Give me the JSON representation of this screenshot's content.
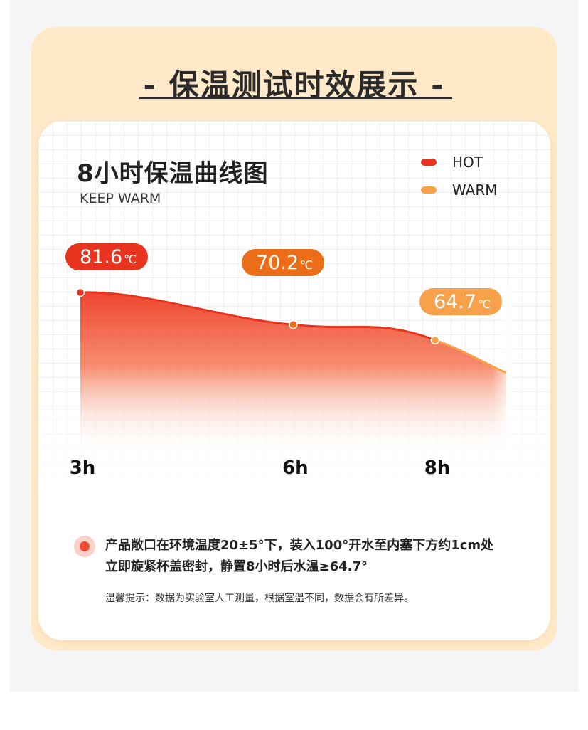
{
  "heading": "- 保温测试时效展示 -",
  "footnote": {
    "line1": "产品敞口在环境温度20±5°下，装入100°开水至内塞下方约1cm处",
    "line2": "立即旋紧杯盖密封，静置8小时后水温≥64.7°"
  },
  "tip": "温馨提示：数据为实验室人工测量，根据室温不同，数据会有所差异。",
  "colors": {
    "hot": "#e8341f",
    "warm": "#f7a24a",
    "label_mid": "#ec6d17"
  },
  "chart_data": {
    "type": "area",
    "title": "8小时保温曲线图",
    "subtitle": "KEEP WARM",
    "legend": [
      "HOT",
      "WARM"
    ],
    "legend_position": "top-right",
    "grid": true,
    "unit": "℃",
    "categories": [
      "3h",
      "6h",
      "8h"
    ],
    "x": [
      3,
      6,
      8
    ],
    "values": [
      81.6,
      70.2,
      64.7
    ],
    "labels": [
      "81.6",
      "70.2",
      "64.7"
    ]
  }
}
